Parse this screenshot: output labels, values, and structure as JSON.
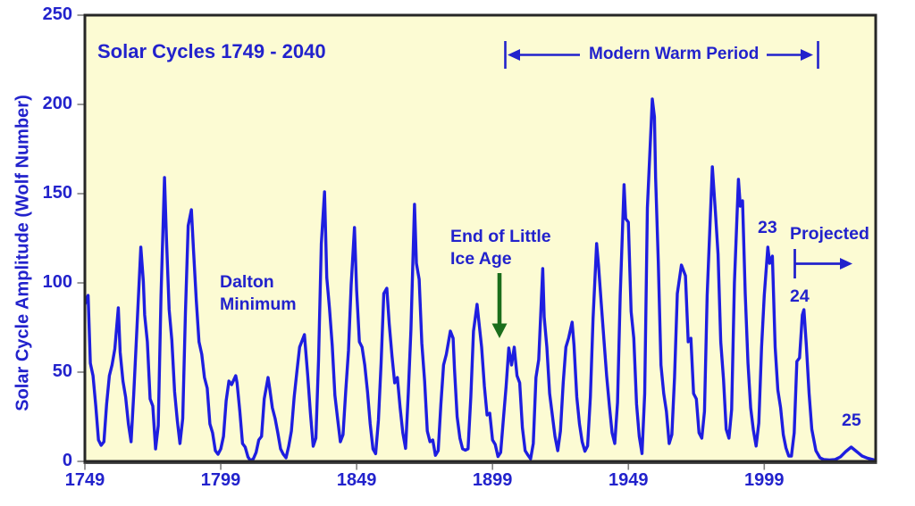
{
  "colors": {
    "line": "#1e1ee0",
    "text": "#2222cc",
    "plot_background": "#fcfbd3",
    "page_background": "#ffffff",
    "border": "#262626",
    "axis_shadow": "#4d4d4d",
    "tick": "#808080",
    "green_arrow": "#1b6e1b"
  },
  "chart_data": {
    "type": "line",
    "title": "Solar Cycles 1749 - 2040",
    "ylabel": "Solar Cycle Amplitude (Wolf Number)",
    "xlabel": "",
    "xlim": [
      1749,
      2040
    ],
    "ylim": [
      0,
      250
    ],
    "x_ticks": [
      1749,
      1799,
      1849,
      1899,
      1949,
      1999
    ],
    "y_ticks": [
      0,
      50,
      100,
      150,
      200,
      250
    ],
    "grid": false,
    "legend": "none",
    "annotations": {
      "modern_warm_period": "Modern Warm Period",
      "dalton_minimum": [
        "Dalton",
        "Minimum"
      ],
      "end_of_little_ice_age": [
        "End of Little",
        "Ice Age"
      ],
      "projected": "Projected",
      "cycle_23": "23",
      "cycle_24": "24",
      "cycle_25": "25"
    },
    "series": [
      {
        "name": "solar-cycle-amplitude-wolf-number",
        "points": [
          [
            1749,
            88
          ],
          [
            1750.2,
            93
          ],
          [
            1751,
            55
          ],
          [
            1752,
            48
          ],
          [
            1753,
            31
          ],
          [
            1754,
            12
          ],
          [
            1755,
            9
          ],
          [
            1756,
            11
          ],
          [
            1757,
            32
          ],
          [
            1758,
            48
          ],
          [
            1759,
            54
          ],
          [
            1760,
            63
          ],
          [
            1761.3,
            86
          ],
          [
            1762,
            61
          ],
          [
            1763,
            45
          ],
          [
            1764,
            36
          ],
          [
            1765,
            21
          ],
          [
            1766,
            11
          ],
          [
            1767,
            38
          ],
          [
            1768,
            70
          ],
          [
            1769.6,
            120
          ],
          [
            1770.5,
            101
          ],
          [
            1771,
            82
          ],
          [
            1772,
            67
          ],
          [
            1773,
            35
          ],
          [
            1774,
            31
          ],
          [
            1775,
            7
          ],
          [
            1776,
            20
          ],
          [
            1777,
            93
          ],
          [
            1778.3,
            159
          ],
          [
            1779,
            126
          ],
          [
            1780,
            85
          ],
          [
            1781,
            68
          ],
          [
            1782,
            39
          ],
          [
            1783,
            23
          ],
          [
            1784,
            10
          ],
          [
            1785,
            24
          ],
          [
            1786,
            83
          ],
          [
            1787,
            132
          ],
          [
            1788.2,
            141
          ],
          [
            1789,
            118
          ],
          [
            1790,
            90
          ],
          [
            1791,
            67
          ],
          [
            1792,
            60
          ],
          [
            1793,
            47
          ],
          [
            1794,
            41
          ],
          [
            1795,
            21
          ],
          [
            1796,
            16
          ],
          [
            1797,
            6
          ],
          [
            1798,
            4
          ],
          [
            1799,
            7
          ],
          [
            1800,
            14
          ],
          [
            1801,
            34
          ],
          [
            1802,
            45
          ],
          [
            1803,
            43
          ],
          [
            1804.5,
            48
          ],
          [
            1805,
            44
          ],
          [
            1806,
            28
          ],
          [
            1807,
            10
          ],
          [
            1808,
            8
          ],
          [
            1809,
            2.5
          ],
          [
            1810,
            0.3
          ],
          [
            1811,
            1.5
          ],
          [
            1812,
            5
          ],
          [
            1813,
            12
          ],
          [
            1814,
            14
          ],
          [
            1815,
            35
          ],
          [
            1816.4,
            47
          ],
          [
            1817,
            41
          ],
          [
            1818,
            30
          ],
          [
            1819,
            24
          ],
          [
            1820,
            16
          ],
          [
            1821,
            7
          ],
          [
            1822,
            4
          ],
          [
            1823,
            2
          ],
          [
            1824,
            8.5
          ],
          [
            1825,
            17
          ],
          [
            1826,
            36
          ],
          [
            1827,
            50
          ],
          [
            1828,
            64
          ],
          [
            1829.8,
            71
          ],
          [
            1831,
            48
          ],
          [
            1832,
            27
          ],
          [
            1833,
            8.5
          ],
          [
            1834,
            13
          ],
          [
            1835,
            57
          ],
          [
            1836,
            122
          ],
          [
            1837.2,
            151
          ],
          [
            1838,
            103
          ],
          [
            1839,
            86
          ],
          [
            1840,
            65
          ],
          [
            1841,
            37
          ],
          [
            1842,
            24
          ],
          [
            1843,
            11
          ],
          [
            1844,
            15
          ],
          [
            1845,
            40
          ],
          [
            1846,
            62
          ],
          [
            1847,
            99
          ],
          [
            1848.2,
            131
          ],
          [
            1849,
            96
          ],
          [
            1850,
            67
          ],
          [
            1851,
            64
          ],
          [
            1852,
            54
          ],
          [
            1853,
            39
          ],
          [
            1854,
            21
          ],
          [
            1855,
            7
          ],
          [
            1856,
            4.3
          ],
          [
            1857,
            23
          ],
          [
            1858,
            55
          ],
          [
            1859,
            94
          ],
          [
            1860.1,
            97
          ],
          [
            1861,
            77
          ],
          [
            1862,
            59
          ],
          [
            1863,
            44
          ],
          [
            1864,
            47
          ],
          [
            1865,
            30
          ],
          [
            1866,
            16
          ],
          [
            1867,
            7.3
          ],
          [
            1868,
            38
          ],
          [
            1869,
            74
          ],
          [
            1870.3,
            144
          ],
          [
            1871,
            111
          ],
          [
            1872,
            102
          ],
          [
            1873,
            66
          ],
          [
            1874,
            45
          ],
          [
            1875,
            17
          ],
          [
            1876,
            11
          ],
          [
            1877,
            12
          ],
          [
            1878,
            3.4
          ],
          [
            1879,
            6
          ],
          [
            1880,
            32
          ],
          [
            1881,
            54
          ],
          [
            1882,
            60
          ],
          [
            1883.5,
            73
          ],
          [
            1884.5,
            69
          ],
          [
            1885,
            52
          ],
          [
            1886,
            25
          ],
          [
            1887,
            13
          ],
          [
            1888,
            7
          ],
          [
            1889,
            6.3
          ],
          [
            1890,
            7
          ],
          [
            1891,
            36
          ],
          [
            1892,
            73
          ],
          [
            1893.3,
            88
          ],
          [
            1894,
            78
          ],
          [
            1895,
            64
          ],
          [
            1896,
            42
          ],
          [
            1897,
            26
          ],
          [
            1898,
            27
          ],
          [
            1899,
            12
          ],
          [
            1900,
            9.5
          ],
          [
            1901,
            2.7
          ],
          [
            1902,
            5
          ],
          [
            1903,
            24
          ],
          [
            1904,
            42
          ],
          [
            1905,
            63.5
          ],
          [
            1906,
            54
          ],
          [
            1907,
            64
          ],
          [
            1908,
            48
          ],
          [
            1909,
            44
          ],
          [
            1910,
            19
          ],
          [
            1911,
            6
          ],
          [
            1912,
            3.6
          ],
          [
            1913,
            1.4
          ],
          [
            1914,
            10
          ],
          [
            1915,
            47
          ],
          [
            1916,
            57
          ],
          [
            1917.5,
            108
          ],
          [
            1918,
            81
          ],
          [
            1919,
            64
          ],
          [
            1920,
            38
          ],
          [
            1921,
            26
          ],
          [
            1922,
            14
          ],
          [
            1923,
            6
          ],
          [
            1924,
            17
          ],
          [
            1925,
            44
          ],
          [
            1926,
            64
          ],
          [
            1927,
            69
          ],
          [
            1928.3,
            78
          ],
          [
            1929,
            65
          ],
          [
            1930,
            36
          ],
          [
            1931,
            21
          ],
          [
            1932,
            11
          ],
          [
            1933,
            5.7
          ],
          [
            1934,
            8.7
          ],
          [
            1935,
            36
          ],
          [
            1936,
            80
          ],
          [
            1937.3,
            122
          ],
          [
            1938,
            110
          ],
          [
            1939,
            89
          ],
          [
            1940,
            68
          ],
          [
            1941,
            48
          ],
          [
            1942,
            31
          ],
          [
            1943,
            16
          ],
          [
            1944,
            10
          ],
          [
            1945,
            33
          ],
          [
            1946,
            93
          ],
          [
            1947.4,
            155
          ],
          [
            1948,
            136
          ],
          [
            1949,
            134
          ],
          [
            1950,
            84
          ],
          [
            1951,
            69
          ],
          [
            1952,
            32
          ],
          [
            1953,
            14
          ],
          [
            1954,
            4.4
          ],
          [
            1955,
            38
          ],
          [
            1956,
            142
          ],
          [
            1957.8,
            203
          ],
          [
            1958.6,
            193
          ],
          [
            1959,
            159
          ],
          [
            1960,
            112
          ],
          [
            1961,
            54
          ],
          [
            1962,
            38
          ],
          [
            1963,
            28
          ],
          [
            1964,
            10
          ],
          [
            1965,
            15
          ],
          [
            1966,
            47
          ],
          [
            1967,
            94
          ],
          [
            1968.5,
            110
          ],
          [
            1969.5,
            106
          ],
          [
            1970,
            104
          ],
          [
            1971,
            67
          ],
          [
            1972,
            69
          ],
          [
            1973,
            38
          ],
          [
            1974,
            35
          ],
          [
            1975,
            16
          ],
          [
            1976,
            13
          ],
          [
            1977,
            28
          ],
          [
            1978,
            93
          ],
          [
            1979.9,
            165
          ],
          [
            1981,
            140
          ],
          [
            1982,
            116
          ],
          [
            1983,
            67
          ],
          [
            1984,
            46
          ],
          [
            1985,
            18
          ],
          [
            1986,
            13
          ],
          [
            1987,
            29
          ],
          [
            1988,
            100
          ],
          [
            1989.5,
            158
          ],
          [
            1990.2,
            143
          ],
          [
            1991,
            146
          ],
          [
            1992,
            94
          ],
          [
            1993,
            55
          ],
          [
            1994,
            30
          ],
          [
            1995,
            17.5
          ],
          [
            1996,
            8.6
          ],
          [
            1997,
            21.5
          ],
          [
            1998,
            64
          ],
          [
            1999,
            93
          ],
          [
            2000.3,
            120
          ],
          [
            2001,
            111
          ],
          [
            2002,
            115
          ],
          [
            2003,
            64
          ],
          [
            2004,
            40
          ],
          [
            2005,
            30
          ],
          [
            2006,
            15
          ],
          [
            2007,
            7.5
          ],
          [
            2008,
            3
          ],
          [
            2009,
            3
          ],
          [
            2010,
            16
          ],
          [
            2011,
            56
          ],
          [
            2012,
            58
          ],
          [
            2013,
            82
          ],
          [
            2013.6,
            85
          ],
          [
            2014.5,
            65
          ],
          [
            2015.5,
            38
          ],
          [
            2016.5,
            18
          ],
          [
            2018,
            6
          ],
          [
            2019.5,
            2
          ],
          [
            2021,
            1
          ],
          [
            2023,
            0.8
          ],
          [
            2025,
            1
          ],
          [
            2027,
            2.5
          ],
          [
            2029,
            5.5
          ],
          [
            2031,
            8
          ],
          [
            2033,
            5.5
          ],
          [
            2035,
            3
          ],
          [
            2037,
            1.8
          ],
          [
            2039,
            1
          ],
          [
            2040,
            0.5
          ]
        ]
      }
    ]
  }
}
